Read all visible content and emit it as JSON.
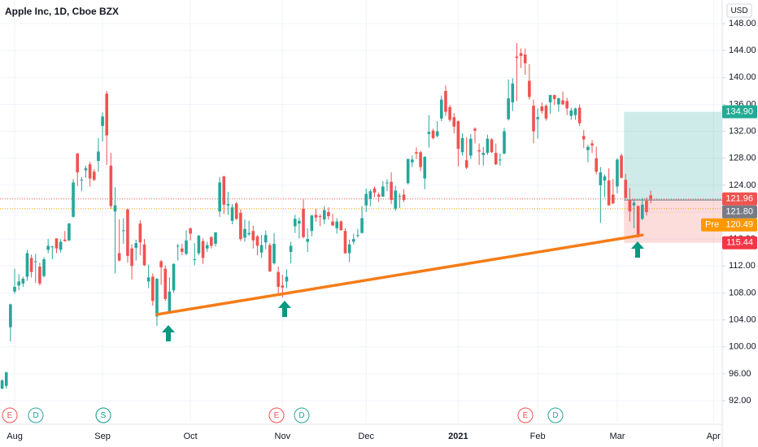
{
  "chart_data": {
    "type": "candlestick",
    "title": "Apple Inc, 1D, Cboe BZX",
    "currency": "USD",
    "up_color": "#26a69a",
    "down_color": "#ef5350",
    "grid": true,
    "ylim": [
      88.74,
      151.5
    ],
    "yticks": [
      {
        "value": 92,
        "label": "92.00"
      },
      {
        "value": 96,
        "label": "96.00"
      },
      {
        "value": 100,
        "label": "100.00"
      },
      {
        "value": 104,
        "label": "104.00"
      },
      {
        "value": 108,
        "label": "108.00"
      },
      {
        "value": 112,
        "label": "112.00"
      },
      {
        "value": 116,
        "label": "116.00"
      },
      {
        "value": 120,
        "label": "120.00"
      },
      {
        "value": 124,
        "label": "124.00"
      },
      {
        "value": 128,
        "label": "128.00"
      },
      {
        "value": 132,
        "label": "132.00"
      },
      {
        "value": 136,
        "label": "136.00"
      },
      {
        "value": 140,
        "label": "140.00"
      },
      {
        "value": 144,
        "label": "144.00"
      },
      {
        "value": 148,
        "label": "148.00"
      }
    ],
    "categories": [
      null,
      null,
      null,
      "Aug",
      null,
      null,
      null,
      null,
      null,
      null,
      null,
      null,
      null,
      null,
      null,
      null,
      null,
      null,
      null,
      null,
      null,
      null,
      null,
      null,
      "Sep",
      null,
      null,
      null,
      null,
      null,
      null,
      null,
      null,
      null,
      null,
      null,
      null,
      null,
      null,
      null,
      null,
      null,
      null,
      null,
      null,
      "Oct",
      null,
      null,
      null,
      null,
      null,
      null,
      null,
      null,
      null,
      null,
      null,
      null,
      null,
      null,
      null,
      null,
      null,
      null,
      null,
      null,
      null,
      "Nov",
      null,
      null,
      null,
      null,
      null,
      null,
      null,
      null,
      null,
      null,
      null,
      null,
      null,
      null,
      null,
      null,
      null,
      null,
      null,
      "Dec",
      null,
      null,
      null,
      null,
      null,
      null,
      null,
      null,
      null,
      null,
      null,
      null,
      null,
      null,
      null,
      null,
      null,
      null,
      null,
      null,
      null,
      "2021",
      null,
      null,
      null,
      null,
      null,
      null,
      null,
      null,
      null,
      null,
      null,
      null,
      null,
      null,
      null,
      null,
      null,
      null,
      "Feb",
      null,
      null,
      null,
      null,
      null,
      null,
      null,
      null,
      null,
      null,
      null,
      null,
      null,
      null,
      null,
      null,
      null,
      null,
      "Mar",
      null,
      null,
      null,
      null,
      null,
      null,
      null,
      null,
      null,
      null,
      null,
      null,
      null,
      null,
      null,
      null,
      null,
      null,
      null,
      null,
      null,
      null,
      "Apr",
      null
    ],
    "candles": [
      [
        93.8,
        95.2,
        93.7,
        95.0
      ],
      [
        94.2,
        96.3,
        93.8,
        96.2
      ],
      [
        102.9,
        106.4,
        100.8,
        106.3
      ],
      [
        108.2,
        111.6,
        107.9,
        108.9
      ],
      [
        109.1,
        110.8,
        108.4,
        109.7
      ],
      [
        109.4,
        110.4,
        108.9,
        110.1
      ],
      [
        110.4,
        114.4,
        109.8,
        113.9
      ],
      [
        113.2,
        113.7,
        110.3,
        111.1
      ],
      [
        112.6,
        113.8,
        109.5,
        112.7
      ],
      [
        111.9,
        112.5,
        109.1,
        109.4
      ],
      [
        110.5,
        113.3,
        110.3,
        113.0
      ],
      [
        114.4,
        116.0,
        113.9,
        115.0
      ],
      [
        114.8,
        115.0,
        113.0,
        114.9
      ],
      [
        116.1,
        116.1,
        113.9,
        114.6
      ],
      [
        114.4,
        116.0,
        114.0,
        115.6
      ],
      [
        115.9,
        117.2,
        115.6,
        115.7
      ],
      [
        115.8,
        118.4,
        115.7,
        118.3
      ],
      [
        119.3,
        124.9,
        119.2,
        124.4
      ],
      [
        128.7,
        128.8,
        123.9,
        125.9
      ],
      [
        124.7,
        125.2,
        123.1,
        124.8
      ],
      [
        126.2,
        126.9,
        125.1,
        126.5
      ],
      [
        127.1,
        127.5,
        123.8,
        125.0
      ],
      [
        126.0,
        126.4,
        124.6,
        124.8
      ],
      [
        127.6,
        131.0,
        126.0,
        129.0
      ],
      [
        132.8,
        134.8,
        130.5,
        134.2
      ],
      [
        137.6,
        138.0,
        127.0,
        131.4
      ],
      [
        126.9,
        128.8,
        120.5,
        120.9
      ],
      [
        120.1,
        123.7,
        110.9,
        121.0
      ],
      [
        113.9,
        118.9,
        112.7,
        112.8
      ],
      [
        117.3,
        119.1,
        115.3,
        117.3
      ],
      [
        120.4,
        120.5,
        112.5,
        113.5
      ],
      [
        114.6,
        115.2,
        110.0,
        112.0
      ],
      [
        114.7,
        115.9,
        112.8,
        115.4
      ],
      [
        118.3,
        118.8,
        113.6,
        115.5
      ],
      [
        115.2,
        116.0,
        112.0,
        112.1
      ],
      [
        109.7,
        112.2,
        108.7,
        110.3
      ],
      [
        110.4,
        110.9,
        106.1,
        106.8
      ],
      [
        104.5,
        110.2,
        103.1,
        110.1
      ],
      [
        112.7,
        112.9,
        109.2,
        111.8
      ],
      [
        111.6,
        112.1,
        106.8,
        107.1
      ],
      [
        105.2,
        110.3,
        105.0,
        108.2
      ],
      [
        108.4,
        112.4,
        108.0,
        112.3
      ],
      [
        115.0,
        115.3,
        112.8,
        115.0
      ],
      [
        114.6,
        115.3,
        113.6,
        114.1
      ],
      [
        113.8,
        117.3,
        113.6,
        115.8
      ],
      [
        117.6,
        117.7,
        115.8,
        116.8
      ],
      [
        112.9,
        115.4,
        112.1,
        113.0
      ],
      [
        113.9,
        116.6,
        113.6,
        116.5
      ],
      [
        115.7,
        116.1,
        112.3,
        113.2
      ],
      [
        114.6,
        115.6,
        114.1,
        115.1
      ],
      [
        116.3,
        116.4,
        114.6,
        115.0
      ],
      [
        115.3,
        117.0,
        114.9,
        117.0
      ],
      [
        120.1,
        125.2,
        119.3,
        124.4
      ],
      [
        125.3,
        125.4,
        119.7,
        121.1
      ],
      [
        121.0,
        123.0,
        119.6,
        121.2
      ],
      [
        118.7,
        121.2,
        118.2,
        120.7
      ],
      [
        121.3,
        121.5,
        118.8,
        119.0
      ],
      [
        119.9,
        120.4,
        115.7,
        116.0
      ],
      [
        116.2,
        118.9,
        115.6,
        117.5
      ],
      [
        116.7,
        118.7,
        116.5,
        116.9
      ],
      [
        117.2,
        118.0,
        114.6,
        115.8
      ],
      [
        116.4,
        116.6,
        113.6,
        115.0
      ],
      [
        114.0,
        116.6,
        113.2,
        115.1
      ],
      [
        115.5,
        117.3,
        114.5,
        116.6
      ],
      [
        115.1,
        115.4,
        111.1,
        111.2
      ],
      [
        112.4,
        116.9,
        112.2,
        115.3
      ],
      [
        111.1,
        111.9,
        107.7,
        108.9
      ],
      [
        109.1,
        110.7,
        107.3,
        108.8
      ],
      [
        109.7,
        111.5,
        108.7,
        110.4
      ],
      [
        114.1,
        115.6,
        112.4,
        115.0
      ],
      [
        117.9,
        119.6,
        116.9,
        119.0
      ],
      [
        118.3,
        119.2,
        116.1,
        118.7
      ],
      [
        120.5,
        121.9,
        116.1,
        116.3
      ],
      [
        115.6,
        117.6,
        114.1,
        116.0
      ],
      [
        117.2,
        119.6,
        116.4,
        119.5
      ],
      [
        119.6,
        120.5,
        118.6,
        119.2
      ],
      [
        119.4,
        119.7,
        117.9,
        119.3
      ],
      [
        118.9,
        120.9,
        118.2,
        120.3
      ],
      [
        120.0,
        120.7,
        118.9,
        119.4
      ],
      [
        118.6,
        119.8,
        118.0,
        118.0
      ],
      [
        117.6,
        119.1,
        116.8,
        118.6
      ],
      [
        118.6,
        118.8,
        117.3,
        117.3
      ],
      [
        117.2,
        117.6,
        113.8,
        113.9
      ],
      [
        113.9,
        115.9,
        112.6,
        115.2
      ],
      [
        115.6,
        116.8,
        115.2,
        116.0
      ],
      [
        116.6,
        117.5,
        116.2,
        116.6
      ],
      [
        116.9,
        120.9,
        116.8,
        119.1
      ],
      [
        121.0,
        123.5,
        120.0,
        122.7
      ],
      [
        122.0,
        123.4,
        120.9,
        123.1
      ],
      [
        123.5,
        123.8,
        122.2,
        122.9
      ],
      [
        122.6,
        122.9,
        121.5,
        122.3
      ],
      [
        122.3,
        124.6,
        122.3,
        123.8
      ],
      [
        124.4,
        124.9,
        123.1,
        124.4
      ],
      [
        124.5,
        125.9,
        121.2,
        121.8
      ],
      [
        120.5,
        123.9,
        120.2,
        123.2
      ],
      [
        122.4,
        122.8,
        120.6,
        122.4
      ],
      [
        122.6,
        123.4,
        121.5,
        121.8
      ],
      [
        124.3,
        127.9,
        124.1,
        127.9
      ],
      [
        127.4,
        128.4,
        126.7,
        127.8
      ],
      [
        128.9,
        129.6,
        127.9,
        128.7
      ],
      [
        128.9,
        129.1,
        126.1,
        126.7
      ],
      [
        125.0,
        128.3,
        123.4,
        128.2
      ],
      [
        131.6,
        134.4,
        129.6,
        131.9
      ],
      [
        132.1,
        132.4,
        130.8,
        131.0
      ],
      [
        131.3,
        133.5,
        131.1,
        132.0
      ],
      [
        133.9,
        137.3,
        133.5,
        136.7
      ],
      [
        138.0,
        138.8,
        134.3,
        134.9
      ],
      [
        135.6,
        135.9,
        133.4,
        133.7
      ],
      [
        134.1,
        134.7,
        131.7,
        132.7
      ],
      [
        133.5,
        133.6,
        126.8,
        129.4
      ],
      [
        128.9,
        131.7,
        128.4,
        131.0
      ],
      [
        127.7,
        131.1,
        126.4,
        126.6
      ],
      [
        128.4,
        131.6,
        127.9,
        130.9
      ],
      [
        132.4,
        132.6,
        130.2,
        132.1
      ],
      [
        129.2,
        130.2,
        127.0,
        129.0
      ],
      [
        128.5,
        129.7,
        126.9,
        128.8
      ],
      [
        128.8,
        131.5,
        128.5,
        130.9
      ],
      [
        130.8,
        131.0,
        128.8,
        128.9
      ],
      [
        128.8,
        130.2,
        127.0,
        127.1
      ],
      [
        127.8,
        128.7,
        126.9,
        127.8
      ],
      [
        128.7,
        132.5,
        128.6,
        132.0
      ],
      [
        133.8,
        139.7,
        133.6,
        136.9
      ],
      [
        136.3,
        139.9,
        135.0,
        139.1
      ],
      [
        143.1,
        145.1,
        136.5,
        142.9
      ],
      [
        143.6,
        144.3,
        141.4,
        143.2
      ],
      [
        143.4,
        144.3,
        140.4,
        142.1
      ],
      [
        139.5,
        141.99,
        136.7,
        137.1
      ],
      [
        135.8,
        136.7,
        130.2,
        132.0
      ],
      [
        133.8,
        135.4,
        130.9,
        134.1
      ],
      [
        135.7,
        136.3,
        134.6,
        135.0
      ],
      [
        135.8,
        136.0,
        133.6,
        133.9
      ],
      [
        136.3,
        137.4,
        134.6,
        137.4
      ],
      [
        137.4,
        137.4,
        135.9,
        136.8
      ],
      [
        136.0,
        137.0,
        134.9,
        136.9
      ],
      [
        136.6,
        137.9,
        135.9,
        136.0
      ],
      [
        136.5,
        136.99,
        134.4,
        135.4
      ],
      [
        134.3,
        135.5,
        133.7,
        135.1
      ],
      [
        134.4,
        135.5,
        133.7,
        135.4
      ],
      [
        135.5,
        136.0,
        132.8,
        133.2
      ],
      [
        131.3,
        132.2,
        129.5,
        130.8
      ],
      [
        129.2,
        130.0,
        127.4,
        129.7
      ],
      [
        130.2,
        130.7,
        128.8,
        129.9
      ],
      [
        128.0,
        129.7,
        125.6,
        126.0
      ],
      [
        124.0,
        126.7,
        118.4,
        125.9
      ],
      [
        124.7,
        125.6,
        122.2,
        125.3
      ],
      [
        124.7,
        126.5,
        121.0,
        121.0
      ],
      [
        122.6,
        124.9,
        121.2,
        121.3
      ],
      [
        123.8,
        128.0,
        122.8,
        127.8
      ],
      [
        128.4,
        128.7,
        125.0,
        125.1
      ],
      [
        124.8,
        125.7,
        122.0,
        122.1
      ],
      [
        121.8,
        123.6,
        118.6,
        120.1
      ],
      [
        121.0,
        121.9,
        117.6,
        121.4
      ],
      [
        120.9,
        121.0,
        116.2,
        116.4
      ],
      [
        119.0,
        122.1,
        118.8,
        121.1
      ],
      [
        121.7,
        122.2,
        119.5,
        120.0
      ],
      [
        122.5,
        123.2,
        121.3,
        121.96
      ],
      null,
      null,
      null,
      null,
      null,
      null,
      null,
      null,
      null,
      null,
      null,
      null,
      null,
      null,
      null,
      null
    ],
    "price_labels": [
      {
        "value": 134.9,
        "label": "134.90",
        "color": "#22ab94"
      },
      {
        "value": 121.96,
        "label": "121.96",
        "color": "#ef5350",
        "dotted": true
      },
      {
        "value": 121.8,
        "label": "121.80",
        "color": "#787b86"
      },
      {
        "value": 120.49,
        "label": "120.49",
        "prefix": "Pre",
        "color": "#ff9800",
        "dotted": true
      },
      {
        "value": 115.44,
        "label": "115.44",
        "color": "#f23645"
      }
    ],
    "position": {
      "start": 149,
      "entry": 121.8,
      "target": 134.9,
      "stop": 115.44
    },
    "trendline": {
      "points": [
        [
          37,
          104.8
        ],
        [
          153,
          116.6
        ]
      ],
      "color": "#f57c17"
    },
    "events": [
      "E",
      "D",
      "S",
      "E",
      "D",
      "E",
      "D"
    ]
  }
}
